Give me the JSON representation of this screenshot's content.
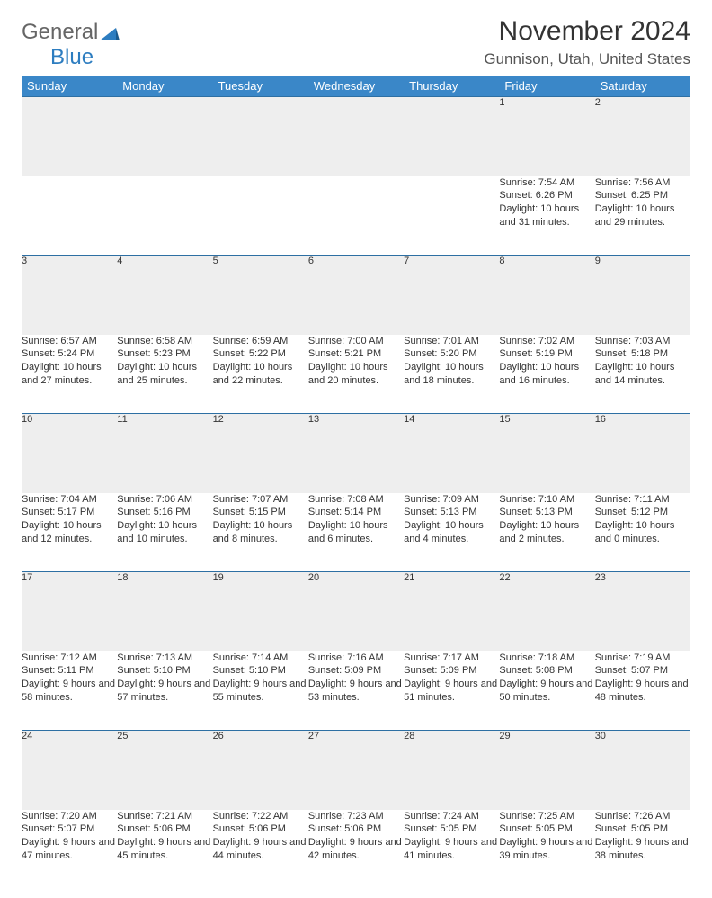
{
  "logo": {
    "word1": "General",
    "word2": "Blue"
  },
  "title": "November 2024",
  "location": "Gunnison, Utah, United States",
  "colors": {
    "header_bg": "#3a87c8",
    "header_fg": "#ffffff",
    "daynum_bg": "#eeeeee",
    "rule": "#2d6fa3",
    "text": "#333333",
    "logo_gray": "#666666",
    "logo_blue": "#2d7dc0"
  },
  "weekdays": [
    "Sunday",
    "Monday",
    "Tuesday",
    "Wednesday",
    "Thursday",
    "Friday",
    "Saturday"
  ],
  "weeks": [
    [
      {
        "n": "",
        "sr": "",
        "ss": "",
        "dl": ""
      },
      {
        "n": "",
        "sr": "",
        "ss": "",
        "dl": ""
      },
      {
        "n": "",
        "sr": "",
        "ss": "",
        "dl": ""
      },
      {
        "n": "",
        "sr": "",
        "ss": "",
        "dl": ""
      },
      {
        "n": "",
        "sr": "",
        "ss": "",
        "dl": ""
      },
      {
        "n": "1",
        "sr": "Sunrise: 7:54 AM",
        "ss": "Sunset: 6:26 PM",
        "dl": "Daylight: 10 hours and 31 minutes."
      },
      {
        "n": "2",
        "sr": "Sunrise: 7:56 AM",
        "ss": "Sunset: 6:25 PM",
        "dl": "Daylight: 10 hours and 29 minutes."
      }
    ],
    [
      {
        "n": "3",
        "sr": "Sunrise: 6:57 AM",
        "ss": "Sunset: 5:24 PM",
        "dl": "Daylight: 10 hours and 27 minutes."
      },
      {
        "n": "4",
        "sr": "Sunrise: 6:58 AM",
        "ss": "Sunset: 5:23 PM",
        "dl": "Daylight: 10 hours and 25 minutes."
      },
      {
        "n": "5",
        "sr": "Sunrise: 6:59 AM",
        "ss": "Sunset: 5:22 PM",
        "dl": "Daylight: 10 hours and 22 minutes."
      },
      {
        "n": "6",
        "sr": "Sunrise: 7:00 AM",
        "ss": "Sunset: 5:21 PM",
        "dl": "Daylight: 10 hours and 20 minutes."
      },
      {
        "n": "7",
        "sr": "Sunrise: 7:01 AM",
        "ss": "Sunset: 5:20 PM",
        "dl": "Daylight: 10 hours and 18 minutes."
      },
      {
        "n": "8",
        "sr": "Sunrise: 7:02 AM",
        "ss": "Sunset: 5:19 PM",
        "dl": "Daylight: 10 hours and 16 minutes."
      },
      {
        "n": "9",
        "sr": "Sunrise: 7:03 AM",
        "ss": "Sunset: 5:18 PM",
        "dl": "Daylight: 10 hours and 14 minutes."
      }
    ],
    [
      {
        "n": "10",
        "sr": "Sunrise: 7:04 AM",
        "ss": "Sunset: 5:17 PM",
        "dl": "Daylight: 10 hours and 12 minutes."
      },
      {
        "n": "11",
        "sr": "Sunrise: 7:06 AM",
        "ss": "Sunset: 5:16 PM",
        "dl": "Daylight: 10 hours and 10 minutes."
      },
      {
        "n": "12",
        "sr": "Sunrise: 7:07 AM",
        "ss": "Sunset: 5:15 PM",
        "dl": "Daylight: 10 hours and 8 minutes."
      },
      {
        "n": "13",
        "sr": "Sunrise: 7:08 AM",
        "ss": "Sunset: 5:14 PM",
        "dl": "Daylight: 10 hours and 6 minutes."
      },
      {
        "n": "14",
        "sr": "Sunrise: 7:09 AM",
        "ss": "Sunset: 5:13 PM",
        "dl": "Daylight: 10 hours and 4 minutes."
      },
      {
        "n": "15",
        "sr": "Sunrise: 7:10 AM",
        "ss": "Sunset: 5:13 PM",
        "dl": "Daylight: 10 hours and 2 minutes."
      },
      {
        "n": "16",
        "sr": "Sunrise: 7:11 AM",
        "ss": "Sunset: 5:12 PM",
        "dl": "Daylight: 10 hours and 0 minutes."
      }
    ],
    [
      {
        "n": "17",
        "sr": "Sunrise: 7:12 AM",
        "ss": "Sunset: 5:11 PM",
        "dl": "Daylight: 9 hours and 58 minutes."
      },
      {
        "n": "18",
        "sr": "Sunrise: 7:13 AM",
        "ss": "Sunset: 5:10 PM",
        "dl": "Daylight: 9 hours and 57 minutes."
      },
      {
        "n": "19",
        "sr": "Sunrise: 7:14 AM",
        "ss": "Sunset: 5:10 PM",
        "dl": "Daylight: 9 hours and 55 minutes."
      },
      {
        "n": "20",
        "sr": "Sunrise: 7:16 AM",
        "ss": "Sunset: 5:09 PM",
        "dl": "Daylight: 9 hours and 53 minutes."
      },
      {
        "n": "21",
        "sr": "Sunrise: 7:17 AM",
        "ss": "Sunset: 5:09 PM",
        "dl": "Daylight: 9 hours and 51 minutes."
      },
      {
        "n": "22",
        "sr": "Sunrise: 7:18 AM",
        "ss": "Sunset: 5:08 PM",
        "dl": "Daylight: 9 hours and 50 minutes."
      },
      {
        "n": "23",
        "sr": "Sunrise: 7:19 AM",
        "ss": "Sunset: 5:07 PM",
        "dl": "Daylight: 9 hours and 48 minutes."
      }
    ],
    [
      {
        "n": "24",
        "sr": "Sunrise: 7:20 AM",
        "ss": "Sunset: 5:07 PM",
        "dl": "Daylight: 9 hours and 47 minutes."
      },
      {
        "n": "25",
        "sr": "Sunrise: 7:21 AM",
        "ss": "Sunset: 5:06 PM",
        "dl": "Daylight: 9 hours and 45 minutes."
      },
      {
        "n": "26",
        "sr": "Sunrise: 7:22 AM",
        "ss": "Sunset: 5:06 PM",
        "dl": "Daylight: 9 hours and 44 minutes."
      },
      {
        "n": "27",
        "sr": "Sunrise: 7:23 AM",
        "ss": "Sunset: 5:06 PM",
        "dl": "Daylight: 9 hours and 42 minutes."
      },
      {
        "n": "28",
        "sr": "Sunrise: 7:24 AM",
        "ss": "Sunset: 5:05 PM",
        "dl": "Daylight: 9 hours and 41 minutes."
      },
      {
        "n": "29",
        "sr": "Sunrise: 7:25 AM",
        "ss": "Sunset: 5:05 PM",
        "dl": "Daylight: 9 hours and 39 minutes."
      },
      {
        "n": "30",
        "sr": "Sunrise: 7:26 AM",
        "ss": "Sunset: 5:05 PM",
        "dl": "Daylight: 9 hours and 38 minutes."
      }
    ]
  ]
}
